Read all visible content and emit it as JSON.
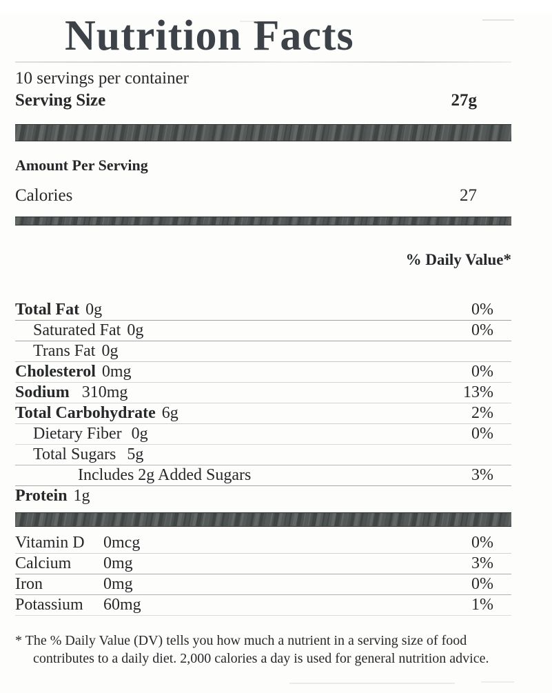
{
  "colors": {
    "divider_bar": "#4d5352",
    "text": "#26282a",
    "title": "#3c4247"
  },
  "label": {
    "title": "Nutrition Facts",
    "servings_per_container": "10 servings per container",
    "serving_size_label": "Serving Size",
    "serving_size_value": "27g",
    "amount_per_serving": "Amount Per Serving",
    "calories_label": "Calories",
    "calories_value": "27",
    "daily_value_header": "% Daily Value*",
    "nutrients": [
      {
        "name": "Total Fat",
        "amount": "0g",
        "dv": "0%",
        "bold": true,
        "indent": 0
      },
      {
        "name": "Saturated Fat",
        "amount": "0g",
        "dv": "0%",
        "bold": false,
        "indent": 1
      },
      {
        "name": "Trans Fat",
        "amount": "0g",
        "dv": "",
        "bold": false,
        "indent": 1
      },
      {
        "name": "Cholesterol",
        "amount": "0mg",
        "dv": "0%",
        "bold": true,
        "indent": 0
      },
      {
        "name": "Sodium",
        "amount": "310mg",
        "dv": "13%",
        "bold": true,
        "indent": 0
      },
      {
        "name": "Total Carbohydrate",
        "amount": "6g",
        "dv": "2%",
        "bold": true,
        "indent": 0
      },
      {
        "name": "Dietary Fiber",
        "amount": "0g",
        "dv": "0%",
        "bold": false,
        "indent": 1
      },
      {
        "name": "Total Sugars",
        "amount": "5g",
        "dv": "",
        "bold": false,
        "indent": 1
      },
      {
        "name": "Includes 2g Added Sugars",
        "amount": "",
        "dv": "3%",
        "bold": false,
        "indent": 2
      },
      {
        "name": "Protein",
        "amount": "1g",
        "dv": "",
        "bold": true,
        "indent": 0
      }
    ],
    "vitamins": [
      {
        "name": "Vitamin D",
        "amount": "0mcg",
        "dv": "0%"
      },
      {
        "name": "Calcium",
        "amount": "0mg",
        "dv": "3%"
      },
      {
        "name": "Iron",
        "amount": "0mg",
        "dv": "0%"
      },
      {
        "name": "Potassium",
        "amount": "60mg",
        "dv": "1%"
      }
    ],
    "footnote": "* The % Daily Value (DV) tells you how much a nutrient in a serving size of food contributes to a daily diet. 2,000 calories a day is used for general nutrition advice."
  }
}
